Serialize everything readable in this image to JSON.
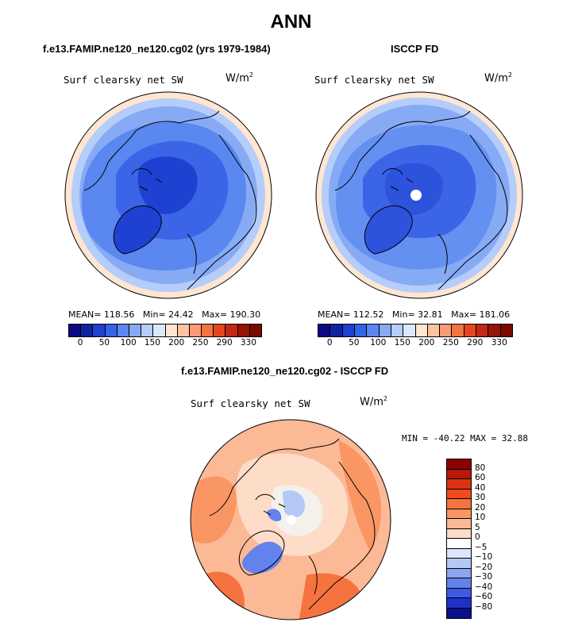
{
  "title": "ANN",
  "panels": [
    {
      "case_label": "f.e13.FAMIP.ne120_ne120.cg02 (yrs 1979-1984)",
      "variable": "Surf clearsky net SW",
      "units_base": "W/m",
      "units_exp": "2",
      "stats": {
        "mean_label": "MEAN=",
        "mean": "118.56",
        "min_label": "Min=",
        "min": "24.42",
        "max_label": "Max=",
        "max": "190.30"
      }
    },
    {
      "case_label": "ISCCP FD",
      "variable": "Surf clearsky net SW",
      "units_base": "W/m",
      "units_exp": "2",
      "stats": {
        "mean_label": "MEAN=",
        "mean": "112.52",
        "min_label": "Min=",
        "min": "32.81",
        "max_label": "Max=",
        "max": "181.06"
      }
    }
  ],
  "abs_colorbar": {
    "colors": [
      "#0a0a87",
      "#0f23a0",
      "#1e41d2",
      "#3264e6",
      "#5a87f0",
      "#87aaf5",
      "#b4cdfa",
      "#dce9fc",
      "#ffe6d2",
      "#fcc3a0",
      "#fa9b73",
      "#f5733f",
      "#e6461e",
      "#c32814",
      "#961405",
      "#780a00"
    ],
    "ticks": [
      "0",
      "50",
      "100",
      "150",
      "200",
      "250",
      "290",
      "330"
    ]
  },
  "diff": {
    "case_label": "f.e13.FAMIP.ne120_ne120.cg02 - ISCCP FD",
    "variable": "Surf clearsky net SW",
    "units_base": "W/m",
    "units_exp": "2",
    "minmax": {
      "min_label": "MIN =",
      "min": "-40.22",
      "max_label": "MAX =",
      "max": "32.88"
    },
    "colorbar": {
      "colors": [
        "#8b0000",
        "#b4190a",
        "#dc3214",
        "#f04b1e",
        "#f5733f",
        "#fa9664",
        "#fcb996",
        "#fddcc8",
        "#ffffff",
        "#dce6fa",
        "#b4c8f5",
        "#8ca5f0",
        "#6482eb",
        "#3c5ae6",
        "#1e32c8",
        "#0a0f8c"
      ],
      "ticks": [
        "80",
        "60",
        "40",
        "30",
        "20",
        "10",
        "5",
        "0",
        "−5",
        "−10",
        "−20",
        "−30",
        "−40",
        "−60",
        "−80"
      ]
    }
  },
  "map_fields": {
    "model": {
      "ocean": "#5a87f0",
      "arctic": "#3c64e6",
      "core": "#1e41d2",
      "outer": "#87aaf5",
      "rim": "#b4cdfa",
      "edge": "#ffe6d2",
      "greenland": "#1e41d2"
    },
    "obs": {
      "ocean": "#6490f2",
      "arctic": "#3c64e6",
      "core": "#2d52dc",
      "outer": "#87aaf5",
      "rim": "#b4cdfa",
      "edge": "#ffe6d2",
      "greenland": "#2d52dc"
    },
    "diff": {
      "base": "#fcb996",
      "warm": "#fa9664",
      "hot": "#f5733f",
      "pale": "#fddcc8",
      "neutral": "#f4f0ec",
      "cool": "#b4c8f5",
      "cold": "#6482eb"
    }
  }
}
